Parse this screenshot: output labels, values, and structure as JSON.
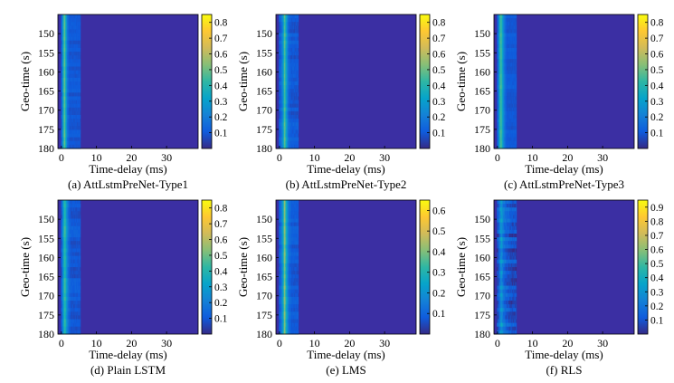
{
  "colors": {
    "colormap": [
      "#352a87",
      "#0f5cdd",
      "#1481d6",
      "#06a4ca",
      "#2eb7a4",
      "#87bf77",
      "#d1bb59",
      "#fec832",
      "#f9fb0e"
    ],
    "background": "#3b2fa3"
  },
  "chart_data": [
    {
      "type": "heatmap",
      "caption": "(a) AttLstmPreNet-Type1",
      "xlabel": "Time-delay (ms)",
      "ylabel": "Geo-time (s)",
      "xlim": [
        -1,
        39
      ],
      "ylim": [
        145,
        180
      ],
      "xticks": [
        "0",
        "10",
        "20",
        "30"
      ],
      "yticks": [
        "150",
        "155",
        "160",
        "165",
        "170",
        "175",
        "180"
      ],
      "colorbar_ticks": [
        "0.1",
        "0.2",
        "0.3",
        "0.4",
        "0.5",
        "0.6",
        "0.7",
        "0.8"
      ],
      "colorbar_range": [
        0,
        0.85
      ],
      "delay_profile": [
        [
          0,
          0.1
        ],
        [
          0.4,
          0.36
        ],
        [
          0.8,
          0.5
        ],
        [
          1.2,
          0.33
        ],
        [
          1.6,
          0.18
        ],
        [
          2.2,
          0.1
        ]
      ],
      "noise": 0.02
    },
    {
      "type": "heatmap",
      "caption": "(b) AttLstmPreNet-Type2",
      "xlabel": "Time-delay (ms)",
      "ylabel": "Geo-time (s)",
      "xlim": [
        -1,
        39
      ],
      "ylim": [
        145,
        180
      ],
      "xticks": [
        "0",
        "10",
        "20",
        "30"
      ],
      "yticks": [
        "150",
        "155",
        "160",
        "165",
        "170",
        "175",
        "180"
      ],
      "colorbar_ticks": [
        "0.1",
        "0.2",
        "0.3",
        "0.4",
        "0.5",
        "0.6",
        "0.7",
        "0.8"
      ],
      "colorbar_range": [
        0,
        0.85
      ],
      "delay_profile": [
        [
          0,
          0.1
        ],
        [
          0.8,
          0.22
        ],
        [
          1.4,
          0.48
        ],
        [
          1.9,
          0.3
        ],
        [
          2.5,
          0.14
        ],
        [
          3.2,
          0.1
        ]
      ],
      "noise": 0.03
    },
    {
      "type": "heatmap",
      "caption": "(c) AttLstmPreNet-Type3",
      "xlabel": "Time-delay (ms)",
      "ylabel": "Geo-time (s)",
      "xlim": [
        -1,
        39
      ],
      "ylim": [
        145,
        180
      ],
      "xticks": [
        "0",
        "10",
        "20",
        "30"
      ],
      "yticks": [
        "150",
        "155",
        "160",
        "165",
        "170",
        "175",
        "180"
      ],
      "colorbar_ticks": [
        "0.1",
        "0.2",
        "0.3",
        "0.4",
        "0.5",
        "0.6",
        "0.7",
        "0.8"
      ],
      "colorbar_range": [
        0,
        0.85
      ],
      "delay_profile": [
        [
          0,
          0.1
        ],
        [
          0.4,
          0.32
        ],
        [
          0.9,
          0.48
        ],
        [
          1.4,
          0.3
        ],
        [
          2.0,
          0.16
        ],
        [
          2.6,
          0.1
        ]
      ],
      "noise": 0.02
    },
    {
      "type": "heatmap",
      "caption": "(d) Plain LSTM",
      "xlabel": "Time-delay (ms)",
      "ylabel": "Geo-time (s)",
      "xlim": [
        -1,
        39
      ],
      "ylim": [
        145,
        180
      ],
      "xticks": [
        "0",
        "10",
        "20",
        "30"
      ],
      "yticks": [
        "150",
        "155",
        "160",
        "165",
        "170",
        "175",
        "180"
      ],
      "colorbar_ticks": [
        "0.1",
        "0.2",
        "0.3",
        "0.4",
        "0.5",
        "0.6",
        "0.7",
        "0.8"
      ],
      "colorbar_range": [
        0,
        0.85
      ],
      "delay_profile": [
        [
          0,
          0.1
        ],
        [
          0.4,
          0.3
        ],
        [
          0.9,
          0.45
        ],
        [
          1.4,
          0.28
        ],
        [
          2.0,
          0.15
        ],
        [
          2.6,
          0.1
        ]
      ],
      "noise": 0.03
    },
    {
      "type": "heatmap",
      "caption": "(e) LMS",
      "xlabel": "Time-delay (ms)",
      "ylabel": "Geo-time (s)",
      "xlim": [
        -1,
        39
      ],
      "ylim": [
        145,
        180
      ],
      "xticks": [
        "0",
        "10",
        "20",
        "30"
      ],
      "yticks": [
        "150",
        "155",
        "160",
        "165",
        "170",
        "175",
        "180"
      ],
      "colorbar_ticks": [
        "0.1",
        "0.2",
        "0.3",
        "0.4",
        "0.5",
        "0.6"
      ],
      "colorbar_range": [
        0,
        0.65
      ],
      "delay_profile": [
        [
          0,
          0.08
        ],
        [
          0.8,
          0.2
        ],
        [
          1.4,
          0.42
        ],
        [
          1.9,
          0.25
        ],
        [
          2.6,
          0.12
        ],
        [
          3.4,
          0.08
        ]
      ],
      "noise": 0.02
    },
    {
      "type": "heatmap",
      "caption": "(f) RLS",
      "xlabel": "Time-delay (ms)",
      "ylabel": "Geo-time (s)",
      "xlim": [
        -1,
        39
      ],
      "ylim": [
        145,
        180
      ],
      "xticks": [
        "0",
        "10",
        "20",
        "30"
      ],
      "yticks": [
        "150",
        "155",
        "160",
        "165",
        "170",
        "175",
        "180"
      ],
      "colorbar_ticks": [
        "0.1",
        "0.2",
        "0.3",
        "0.4",
        "0.5",
        "0.6",
        "0.7",
        "0.8",
        "0.9"
      ],
      "colorbar_range": [
        0,
        0.95
      ],
      "delay_profile": [
        [
          0,
          0.09
        ],
        [
          0.5,
          0.2
        ],
        [
          1.0,
          0.32
        ],
        [
          1.5,
          0.22
        ],
        [
          2.2,
          0.15
        ],
        [
          3.0,
          0.12
        ],
        [
          4.0,
          0.09
        ]
      ],
      "noise": 0.07
    }
  ]
}
